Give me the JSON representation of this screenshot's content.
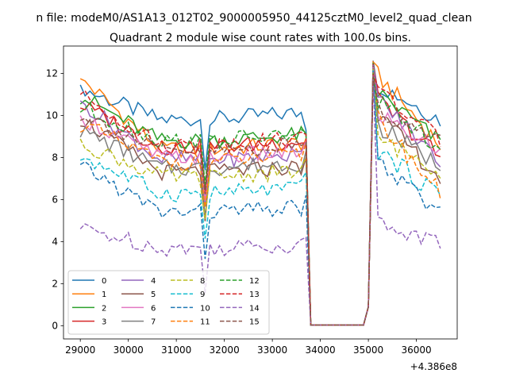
{
  "chart_data": {
    "type": "line",
    "suptitle": "n file: modeM0/AS1A13_012T02_9000005950_44125cztM0_level2_quad_clean",
    "title": "Quadrant 2 module wise count rates with 100.0s bins.",
    "xlabel": "",
    "ylabel": "",
    "offset_text": "+4.386e8",
    "xlim": [
      28650,
      36850
    ],
    "ylim": [
      -0.63,
      13.3
    ],
    "xticks": [
      29000,
      30000,
      31000,
      32000,
      33000,
      34000,
      35000,
      36000
    ],
    "yticks": [
      0,
      2,
      4,
      6,
      8,
      10,
      12
    ],
    "legend": "lower-left",
    "legend_columns": 4,
    "x": {
      "start": 29000,
      "step": 100,
      "count": 76
    },
    "series": [
      {
        "name": "0",
        "color": "#1f77b4",
        "dash": "solid",
        "base": 9.8,
        "slope": 0.35,
        "peak": 11.2,
        "gap": 9.3,
        "after": 9.8,
        "floor": 0.03
      },
      {
        "name": "1",
        "color": "#ff7f0e",
        "dash": "solid",
        "base": 8.4,
        "slope": 0.3,
        "peak": 11.6,
        "gap": 8.9,
        "after": 8.6,
        "floor": 0.03
      },
      {
        "name": "2",
        "color": "#2ca02c",
        "dash": "solid",
        "base": 8.8,
        "slope": 0.3,
        "peak": 10.8,
        "gap": 9.1,
        "after": 8.7,
        "floor": 0.03
      },
      {
        "name": "3",
        "color": "#d62728",
        "dash": "solid",
        "base": 8.5,
        "slope": 0.3,
        "peak": 10.4,
        "gap": 8.7,
        "after": 8.0,
        "floor": 0.03
      },
      {
        "name": "4",
        "color": "#9467bd",
        "dash": "solid",
        "base": 7.9,
        "slope": 0.25,
        "peak": 10.5,
        "gap": 8.6,
        "after": 7.8,
        "floor": 0.03
      },
      {
        "name": "5",
        "color": "#8c564b",
        "dash": "solid",
        "base": 7.3,
        "slope": 0.25,
        "peak": 9.7,
        "gap": 8.0,
        "after": 7.0,
        "floor": 0.03
      },
      {
        "name": "6",
        "color": "#e377c2",
        "dash": "solid",
        "base": 8.0,
        "slope": 0.3,
        "peak": 9.8,
        "gap": 8.8,
        "after": 8.3,
        "floor": 0.03
      },
      {
        "name": "7",
        "color": "#7f7f7f",
        "dash": "solid",
        "base": 7.5,
        "slope": 0.25,
        "peak": 9.2,
        "gap": 8.3,
        "after": 7.6,
        "floor": 0.03
      },
      {
        "name": "8",
        "color": "#bcbd22",
        "dash": "dashed",
        "base": 7.1,
        "slope": 0.25,
        "peak": 8.6,
        "gap": 8.0,
        "after": 7.4,
        "floor": 0.03
      },
      {
        "name": "9",
        "color": "#17becf",
        "dash": "dashed",
        "base": 6.3,
        "slope": 0.25,
        "peak": 8.0,
        "gap": 7.3,
        "after": 6.2,
        "floor": 0.03
      },
      {
        "name": "10",
        "color": "#1f77b4",
        "dash": "dashed",
        "base": 5.4,
        "slope": 0.2,
        "peak": 7.5,
        "gap": 6.2,
        "after": 5.2,
        "floor": 0.03
      },
      {
        "name": "11",
        "color": "#ff7f0e",
        "dash": "dashed",
        "base": 7.8,
        "slope": 0.3,
        "peak": 9.5,
        "gap": 8.7,
        "after": 6.3,
        "floor": 0.03
      },
      {
        "name": "12",
        "color": "#2ca02c",
        "dash": "dashed",
        "base": 8.8,
        "slope": 0.3,
        "peak": 10.3,
        "gap": 9.2,
        "after": 8.5,
        "floor": 0.03
      },
      {
        "name": "13",
        "color": "#d62728",
        "dash": "dashed",
        "base": 8.6,
        "slope": 0.3,
        "peak": 10.9,
        "gap": 9.1,
        "after": 8.8,
        "floor": 0.03
      },
      {
        "name": "14",
        "color": "#9467bd",
        "dash": "dashed",
        "base": 3.7,
        "slope": 0.15,
        "peak": 4.6,
        "gap": 4.2,
        "after": 3.9,
        "floor": 0.03
      },
      {
        "name": "15",
        "color": "#8c564b",
        "dash": "dashed",
        "base": 8.3,
        "slope": 0.3,
        "peak": 10.0,
        "gap": 8.7,
        "after": 8.7,
        "floor": 0.03
      }
    ]
  }
}
